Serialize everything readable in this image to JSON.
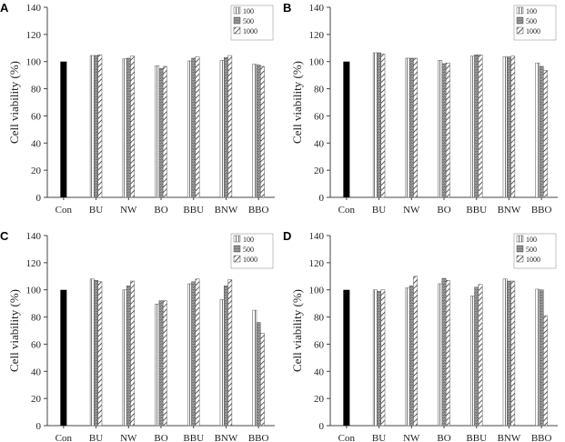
{
  "chart_data": [
    {
      "type": "bar",
      "panel": "A",
      "ylabel": "Cell viability (%)",
      "ylim": [
        0,
        140
      ],
      "yticks": [
        0,
        20,
        40,
        60,
        80,
        100,
        120,
        140
      ],
      "categories": [
        "Con",
        "BU",
        "NW",
        "BO",
        "BBU",
        "BNW",
        "BBO"
      ],
      "control_value": 100,
      "series": [
        {
          "name": "100",
          "values": [
            null,
            104.5,
            102,
            97,
            100.5,
            101,
            98
          ]
        },
        {
          "name": "500",
          "values": [
            null,
            104.5,
            102.5,
            95,
            102.5,
            103,
            97.5
          ]
        },
        {
          "name": "1000",
          "values": [
            null,
            105,
            104,
            96.5,
            103.5,
            104.5,
            96.5
          ]
        }
      ],
      "legend": "top-right"
    },
    {
      "type": "bar",
      "panel": "B",
      "ylabel": "Cell viability (%)",
      "ylim": [
        0,
        140
      ],
      "yticks": [
        0,
        20,
        40,
        60,
        80,
        100,
        120,
        140
      ],
      "categories": [
        "Con",
        "BU",
        "NW",
        "BO",
        "BBU",
        "BNW",
        "BBO"
      ],
      "control_value": 100,
      "series": [
        {
          "name": "100",
          "values": [
            null,
            106.5,
            102.5,
            101,
            104,
            103.5,
            99
          ]
        },
        {
          "name": "500",
          "values": [
            null,
            106.5,
            102.5,
            98.5,
            105,
            103.5,
            96.5
          ]
        },
        {
          "name": "1000",
          "values": [
            null,
            105.5,
            102.5,
            99,
            105,
            104,
            93.5
          ]
        }
      ],
      "legend": "top-right"
    },
    {
      "type": "bar",
      "panel": "C",
      "ylabel": "Cell viability (%)",
      "ylim": [
        0,
        140
      ],
      "yticks": [
        0,
        20,
        40,
        60,
        80,
        100,
        120,
        140
      ],
      "categories": [
        "Con",
        "BU",
        "NW",
        "BO",
        "BBU",
        "BNW",
        "BBO"
      ],
      "control_value": 100,
      "series": [
        {
          "name": "100",
          "values": [
            null,
            108,
            100,
            89.5,
            104.5,
            93,
            85
          ]
        },
        {
          "name": "500",
          "values": [
            null,
            107,
            103,
            92,
            106,
            103,
            76
          ]
        },
        {
          "name": "1000",
          "values": [
            null,
            106,
            106.5,
            92,
            108,
            107.5,
            68
          ]
        }
      ],
      "legend": "top-right"
    },
    {
      "type": "bar",
      "panel": "D",
      "ylabel": "Cell viability (%)",
      "ylim": [
        0,
        140
      ],
      "yticks": [
        0,
        20,
        40,
        60,
        80,
        100,
        120,
        140
      ],
      "categories": [
        "Con",
        "BU",
        "NW",
        "BO",
        "BBU",
        "BNW",
        "BBO"
      ],
      "control_value": 100,
      "series": [
        {
          "name": "100",
          "values": [
            null,
            100,
            101.5,
            104.5,
            95.5,
            108,
            100.5
          ]
        },
        {
          "name": "500",
          "values": [
            null,
            99,
            103,
            108.5,
            102,
            106.5,
            100
          ]
        },
        {
          "name": "1000",
          "values": [
            null,
            100,
            110,
            107,
            104,
            106.5,
            81
          ]
        }
      ],
      "legend": "top-right"
    }
  ],
  "colors": {
    "control_bar": "#000000",
    "bar_stroke": "#555555",
    "axis": "#444444"
  }
}
